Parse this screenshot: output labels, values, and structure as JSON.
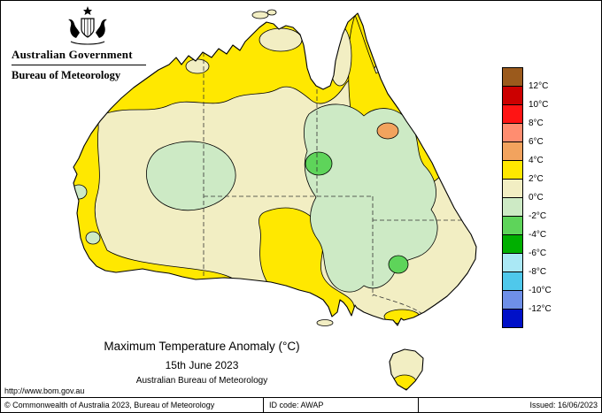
{
  "header": {
    "government_label": "Australian Government",
    "bureau_label": "Bureau of Meteorology"
  },
  "map": {
    "title": "Maximum Temperature Anomaly (°C)",
    "date": "15th June 2023",
    "attribution": "Australian Bureau of Meteorology"
  },
  "legend": {
    "labels": [
      "12°C",
      "10°C",
      "8°C",
      "6°C",
      "4°C",
      "2°C",
      "0°C",
      "-2°C",
      "-4°C",
      "-6°C",
      "-8°C",
      "-10°C",
      "-12°C"
    ],
    "colors": [
      "#9B5A1C",
      "#CC0000",
      "#FF1414",
      "#FF8D70",
      "#F2A35E",
      "#FFE800",
      "#F2EEC3",
      "#CDEAC5",
      "#5ED45A",
      "#00AF00",
      "#AAE8F5",
      "#4FC8EB",
      "#6E8FE8",
      "#0010C8"
    ]
  },
  "footer": {
    "url": "http://www.bom.gov.au",
    "copyright": "© Commonwealth of Australia 2023, Bureau of Meteorology",
    "id_code": "ID code: AWAP",
    "issued": "Issued: 16/06/2023"
  }
}
